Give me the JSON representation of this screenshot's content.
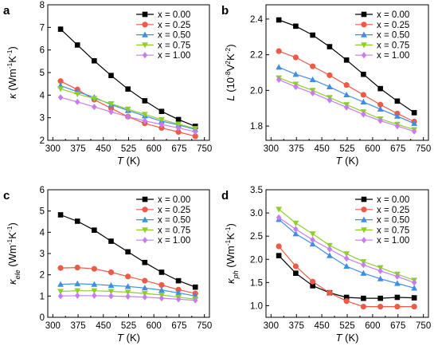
{
  "chart_data": [
    {
      "panel": "a",
      "type": "line",
      "title": "",
      "xlabel": {
        "symbol": "T",
        "unit": " (K)"
      },
      "ylabel": {
        "symbol": "κ",
        "sub": "",
        "unit_before": " (Wm",
        "sup1": "-1",
        "unit_mid": "K",
        "sup2": "-1",
        "unit_after": ")"
      },
      "xlim": [
        285,
        765
      ],
      "ylim": [
        2,
        8
      ],
      "xticks": [
        300,
        375,
        450,
        525,
        600,
        675,
        750
      ],
      "yticks": [
        2,
        3,
        4,
        5,
        6,
        7,
        8
      ],
      "legend_position": "top-right",
      "series": [
        {
          "name": "x = 0.00",
          "color": "#000000",
          "marker": "square",
          "x": [
            323,
            373,
            423,
            473,
            523,
            573,
            623,
            673,
            723
          ],
          "values": [
            6.92,
            6.22,
            5.52,
            4.87,
            4.27,
            3.75,
            3.28,
            2.92,
            2.62
          ]
        },
        {
          "name": "x = 0.25",
          "color": "#ee5a45",
          "marker": "circle",
          "x": [
            323,
            373,
            423,
            473,
            523,
            573,
            623,
            673,
            723
          ],
          "values": [
            4.62,
            4.25,
            3.8,
            3.42,
            3.05,
            2.75,
            2.55,
            2.37,
            2.18
          ]
        },
        {
          "name": "x = 0.50",
          "color": "#3d8ee6",
          "marker": "triangle",
          "x": [
            323,
            373,
            423,
            473,
            523,
            573,
            623,
            673,
            723
          ],
          "values": [
            4.42,
            4.15,
            3.9,
            3.58,
            3.32,
            3.08,
            2.85,
            2.68,
            2.48
          ]
        },
        {
          "name": "x = 0.75",
          "color": "#8fce2f",
          "marker": "triangle-down",
          "x": [
            323,
            373,
            423,
            473,
            523,
            573,
            623,
            673,
            723
          ],
          "values": [
            4.28,
            4.05,
            3.85,
            3.62,
            3.38,
            3.15,
            2.92,
            2.72,
            2.52
          ]
        },
        {
          "name": "x = 1.00",
          "color": "#c77dee",
          "marker": "diamond",
          "x": [
            323,
            373,
            423,
            473,
            523,
            573,
            623,
            673,
            723
          ],
          "values": [
            3.9,
            3.7,
            3.48,
            3.26,
            3.05,
            2.86,
            2.7,
            2.55,
            2.38
          ]
        }
      ]
    },
    {
      "panel": "b",
      "type": "line",
      "title": "",
      "xlabel": {
        "symbol": "T",
        "unit": " (K)"
      },
      "ylabel": {
        "symbol": "L",
        "sub": "",
        "unit_before": " (10",
        "sup1": "-8",
        "unit_mid": "V",
        "sup2": "2",
        "unit_mid2": "K",
        "sup3": "-2",
        "unit_after": ")"
      },
      "xlim": [
        285,
        765
      ],
      "ylim": [
        1.72,
        2.48
      ],
      "xticks": [
        300,
        375,
        450,
        525,
        600,
        675,
        750
      ],
      "yticks": [
        1.8,
        2.0,
        2.2,
        2.4
      ],
      "legend_position": "top-right",
      "series": [
        {
          "name": "x = 0.00",
          "color": "#000000",
          "marker": "square",
          "x": [
            323,
            373,
            423,
            473,
            523,
            573,
            623,
            673,
            723
          ],
          "values": [
            2.395,
            2.36,
            2.31,
            2.245,
            2.17,
            2.09,
            2.01,
            1.94,
            1.875
          ]
        },
        {
          "name": "x = 0.25",
          "color": "#ee5a45",
          "marker": "circle",
          "x": [
            323,
            373,
            423,
            473,
            523,
            573,
            623,
            673,
            723
          ],
          "values": [
            2.22,
            2.185,
            2.135,
            2.085,
            2.03,
            1.975,
            1.92,
            1.87,
            1.825
          ]
        },
        {
          "name": "x = 0.50",
          "color": "#3d8ee6",
          "marker": "triangle",
          "x": [
            323,
            373,
            423,
            473,
            523,
            573,
            623,
            673,
            723
          ],
          "values": [
            2.13,
            2.09,
            2.06,
            2.02,
            1.975,
            1.935,
            1.895,
            1.855,
            1.815
          ]
        },
        {
          "name": "x = 0.75",
          "color": "#8fce2f",
          "marker": "triangle-down",
          "x": [
            323,
            373,
            423,
            473,
            523,
            573,
            623,
            673,
            723
          ],
          "values": [
            2.07,
            2.035,
            2.0,
            1.96,
            1.92,
            1.88,
            1.84,
            1.81,
            1.78
          ]
        },
        {
          "name": "x = 1.00",
          "color": "#c77dee",
          "marker": "diamond",
          "x": [
            323,
            373,
            423,
            473,
            523,
            573,
            623,
            673,
            723
          ],
          "values": [
            2.06,
            2.02,
            1.985,
            1.945,
            1.905,
            1.865,
            1.83,
            1.8,
            1.77
          ]
        }
      ]
    },
    {
      "panel": "c",
      "type": "line",
      "title": "",
      "xlabel": {
        "symbol": "T",
        "unit": " (K)"
      },
      "ylabel": {
        "symbol": "κ",
        "sub": "ele",
        "unit_before": " (Wm",
        "sup1": "-1",
        "unit_mid": "K",
        "sup2": "-1",
        "unit_after": ")"
      },
      "xlim": [
        285,
        765
      ],
      "ylim": [
        0,
        6
      ],
      "xticks": [
        300,
        375,
        450,
        525,
        600,
        675,
        750
      ],
      "yticks": [
        0,
        1,
        2,
        3,
        4,
        5,
        6
      ],
      "legend_position": "top-right",
      "series": [
        {
          "name": "x = 0.00",
          "color": "#000000",
          "marker": "square",
          "x": [
            323,
            373,
            423,
            473,
            523,
            573,
            623,
            673,
            723
          ],
          "values": [
            4.82,
            4.52,
            4.1,
            3.58,
            3.08,
            2.58,
            2.12,
            1.72,
            1.42
          ]
        },
        {
          "name": "x = 0.25",
          "color": "#ee5a45",
          "marker": "circle",
          "x": [
            323,
            373,
            423,
            473,
            523,
            573,
            623,
            673,
            723
          ],
          "values": [
            2.32,
            2.34,
            2.28,
            2.12,
            1.92,
            1.72,
            1.52,
            1.3,
            1.12
          ]
        },
        {
          "name": "x = 0.50",
          "color": "#3d8ee6",
          "marker": "triangle",
          "x": [
            323,
            373,
            423,
            473,
            523,
            573,
            623,
            673,
            723
          ],
          "values": [
            1.55,
            1.58,
            1.55,
            1.5,
            1.45,
            1.38,
            1.28,
            1.15,
            1.0
          ]
        },
        {
          "name": "x = 0.75",
          "color": "#8fce2f",
          "marker": "triangle-down",
          "x": [
            323,
            373,
            423,
            473,
            523,
            573,
            623,
            673,
            723
          ],
          "values": [
            1.22,
            1.25,
            1.25,
            1.22,
            1.18,
            1.12,
            1.05,
            0.95,
            0.85
          ]
        },
        {
          "name": "x = 1.00",
          "color": "#c77dee",
          "marker": "diamond",
          "x": [
            323,
            373,
            423,
            473,
            523,
            573,
            623,
            673,
            723
          ],
          "values": [
            1.0,
            1.02,
            1.02,
            1.0,
            0.98,
            0.95,
            0.9,
            0.85,
            0.8
          ]
        }
      ]
    },
    {
      "panel": "d",
      "type": "line",
      "title": "",
      "xlabel": {
        "symbol": "T",
        "unit": " (K)"
      },
      "ylabel": {
        "symbol": "κ",
        "sub": "ph",
        "unit_before": " (Wm",
        "sup1": "-1",
        "unit_mid": "K",
        "sup2": "-1",
        "unit_after": ")"
      },
      "xlim": [
        285,
        765
      ],
      "ylim": [
        0.75,
        3.5
      ],
      "xticks": [
        300,
        375,
        450,
        525,
        600,
        675,
        750
      ],
      "yticks": [
        1.0,
        1.5,
        2.0,
        2.5,
        3.0,
        3.5
      ],
      "legend_position": "top-right",
      "series": [
        {
          "name": "x = 0.00",
          "color": "#000000",
          "marker": "square",
          "x": [
            323,
            373,
            423,
            473,
            523,
            573,
            623,
            673,
            723
          ],
          "values": [
            2.08,
            1.7,
            1.43,
            1.28,
            1.18,
            1.16,
            1.16,
            1.18,
            1.17
          ]
        },
        {
          "name": "x = 0.25",
          "color": "#ee5a45",
          "marker": "circle",
          "x": [
            323,
            373,
            423,
            473,
            523,
            573,
            623,
            673,
            723
          ],
          "values": [
            2.28,
            1.85,
            1.52,
            1.28,
            1.1,
            0.98,
            0.98,
            0.98,
            0.98
          ]
        },
        {
          "name": "x = 0.50",
          "color": "#3d8ee6",
          "marker": "triangle",
          "x": [
            323,
            373,
            423,
            473,
            523,
            573,
            623,
            673,
            723
          ],
          "values": [
            2.86,
            2.55,
            2.33,
            2.08,
            1.85,
            1.7,
            1.58,
            1.48,
            1.38
          ]
        },
        {
          "name": "x = 0.75",
          "color": "#8fce2f",
          "marker": "triangle-down",
          "x": [
            323,
            373,
            423,
            473,
            523,
            573,
            623,
            673,
            723
          ],
          "values": [
            3.08,
            2.78,
            2.55,
            2.3,
            2.12,
            1.95,
            1.82,
            1.68,
            1.55
          ]
        },
        {
          "name": "x = 1.00",
          "color": "#c77dee",
          "marker": "diamond",
          "x": [
            323,
            373,
            423,
            473,
            523,
            573,
            623,
            673,
            723
          ],
          "values": [
            2.9,
            2.65,
            2.42,
            2.22,
            2.02,
            1.88,
            1.75,
            1.63,
            1.5
          ]
        }
      ]
    }
  ]
}
